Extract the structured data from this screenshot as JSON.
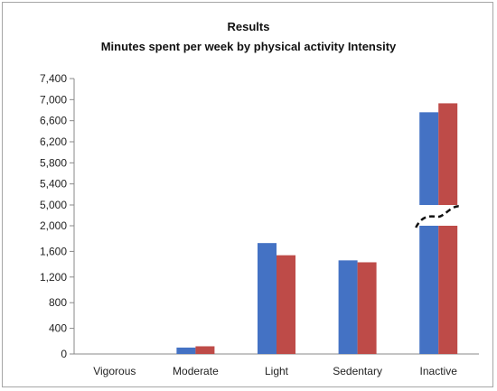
{
  "chart_data": {
    "type": "bar",
    "title": "Results",
    "subtitle": "Minutes spent per week by physical activity Intensity",
    "xlabel": "",
    "ylabel": "",
    "categories": [
      "Vigorous",
      "Moderate",
      "Light",
      "Sedentary",
      "Inactive"
    ],
    "series": [
      {
        "color": "#4472c4",
        "values": [
          0,
          100,
          1730,
          1460,
          6760
        ]
      },
      {
        "color": "#be4b48",
        "values": [
          0,
          120,
          1540,
          1430,
          6930
        ]
      }
    ],
    "axis_break": {
      "lower_range": [
        0,
        2000
      ],
      "upper_range": [
        5000,
        7400
      ]
    },
    "y_ticks_lower": [
      "0",
      "400",
      "800",
      "1,200",
      "1,600",
      "2,000"
    ],
    "y_ticks_upper": [
      "5,000",
      "5,400",
      "5,800",
      "6,200",
      "6,600",
      "7,000",
      "7,400"
    ],
    "grid": false,
    "legend": "none"
  }
}
